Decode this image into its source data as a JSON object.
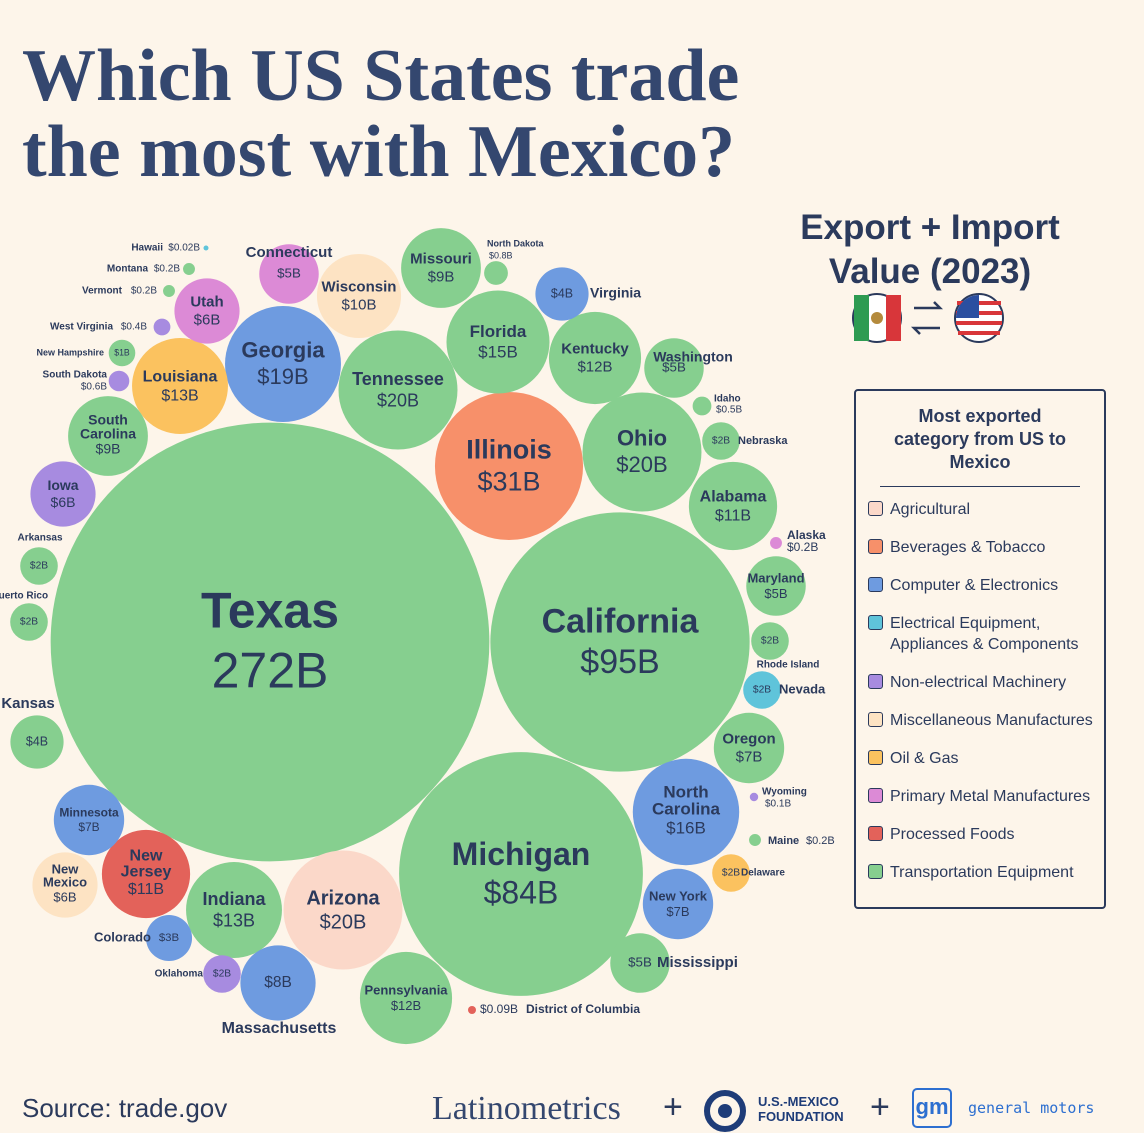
{
  "chart_data": {
    "type": "bubble",
    "title": "Which US States trade the most with Mexico?",
    "subtitle": "Export + Import Value (2023)",
    "legend_title": "Most exported category from US to Mexico",
    "categories": [
      "Texas",
      "California",
      "Michigan",
      "Illinois",
      "Ohio",
      "Tennessee",
      "Arizona",
      "Georgia",
      "North Carolina",
      "Florida",
      "Indiana",
      "Louisiana",
      "Kentucky",
      "Pennsylvania",
      "Alabama",
      "New Jersey",
      "Wisconsin",
      "Missouri",
      "South Carolina",
      "Massachusetts",
      "Minnesota",
      "Oregon",
      "New York",
      "Utah",
      "Iowa",
      "New Mexico",
      "Connecticut",
      "Washington",
      "Maryland",
      "Mississippi",
      "Virginia",
      "Kansas",
      "Arkansas",
      "Puerto Rico",
      "Rhode Island",
      "Nevada",
      "Nebraska",
      "Delaware",
      "Colorado",
      "Oklahoma",
      "New Hampshire",
      "North Dakota",
      "South Dakota",
      "Idaho",
      "West Virginia",
      "Montana",
      "Vermont",
      "Alaska",
      "Wyoming",
      "Maine",
      "Hawaii",
      "District of Columbia"
    ],
    "values": [
      272,
      95,
      84,
      31,
      20,
      20,
      20,
      19,
      16,
      15,
      13,
      13,
      12,
      12,
      11,
      11,
      10,
      9,
      9,
      8,
      7,
      7,
      7,
      6,
      6,
      6,
      5,
      5,
      5,
      5,
      4,
      4,
      2,
      2,
      2,
      2,
      2,
      2,
      3,
      2,
      1,
      0.8,
      0.6,
      0.5,
      0.4,
      0.2,
      0.2,
      0.2,
      0.1,
      0.2,
      0.02,
      0.09
    ],
    "value_labels": [
      "272B",
      "$95B",
      "$84B",
      "$31B",
      "$20B",
      "$20B",
      "$20B",
      "$19B",
      "$16B",
      "$15B",
      "$13B",
      "$13B",
      "$12B",
      "$12B",
      "$11B",
      "$11B",
      "$10B",
      "$9B",
      "$9B",
      "$8B",
      "$7B",
      "$7B",
      "$7B",
      "$6B",
      "$6B",
      "$6B",
      "$5B",
      "$5B",
      "$5B",
      "$5B",
      "$4B",
      "$4B",
      "$2B",
      "$2B",
      "$2B",
      "$2B",
      "$2B",
      "$2B",
      "$3B",
      "$2B",
      "$1B",
      "$0.8B",
      "$0.6B",
      "$0.5B",
      "$0.4B",
      "$0.2B",
      "$0.2B",
      "$0.2B",
      "$0.1B",
      "$0.2B",
      "$0.02B",
      "$0.09B"
    ],
    "colors": [
      "#86cf8f",
      "#86cf8f",
      "#86cf8f",
      "#f7906a",
      "#86cf8f",
      "#86cf8f",
      "#fbd8c9",
      "#6e9be0",
      "#6e9be0",
      "#86cf8f",
      "#86cf8f",
      "#fbc25f",
      "#86cf8f",
      "#86cf8f",
      "#86cf8f",
      "#e3625a",
      "#fde3c3",
      "#86cf8f",
      "#86cf8f",
      "#6e9be0",
      "#6e9be0",
      "#86cf8f",
      "#6e9be0",
      "#dc8ad6",
      "#a78be0",
      "#fde3c3",
      "#dc8ad6",
      "#86cf8f",
      "#86cf8f",
      "#86cf8f",
      "#6e9be0",
      "#86cf8f",
      "#86cf8f",
      "#86cf8f",
      "#86cf8f",
      "#5fc4da",
      "#86cf8f",
      "#fbc25f",
      "#6e9be0",
      "#a78be0",
      "#86cf8f",
      "#86cf8f",
      "#a78be0",
      "#86cf8f",
      "#a78be0",
      "#86cf8f",
      "#86cf8f",
      "#dc8ad6",
      "#a78be0",
      "#86cf8f",
      "#5fc4da",
      "#e3625a"
    ],
    "legend_items": [
      {
        "name": "Agricultural",
        "color": "#fbd8c9"
      },
      {
        "name": "Beverages & Tobacco",
        "color": "#f7906a"
      },
      {
        "name": "Computer & Electronics",
        "color": "#6e9be0"
      },
      {
        "name": "Electrical Equipment, Appliances & Components",
        "color": "#5fc4da"
      },
      {
        "name": "Non-electrical Machinery",
        "color": "#a78be0"
      },
      {
        "name": "Miscellaneous Manufactures",
        "color": "#fde3c3"
      },
      {
        "name": "Oil & Gas",
        "color": "#fbc25f"
      },
      {
        "name": "Primary Metal Manufactures",
        "color": "#dc8ad6"
      },
      {
        "name": "Processed Foods",
        "color": "#e3625a"
      },
      {
        "name": "Transportation Equipment",
        "color": "#86cf8f"
      }
    ],
    "source": "Source: trade.gov",
    "logos": [
      "Latinometrics",
      "U.S.-MEXICO FOUNDATION",
      "gm",
      "general motors"
    ]
  }
}
